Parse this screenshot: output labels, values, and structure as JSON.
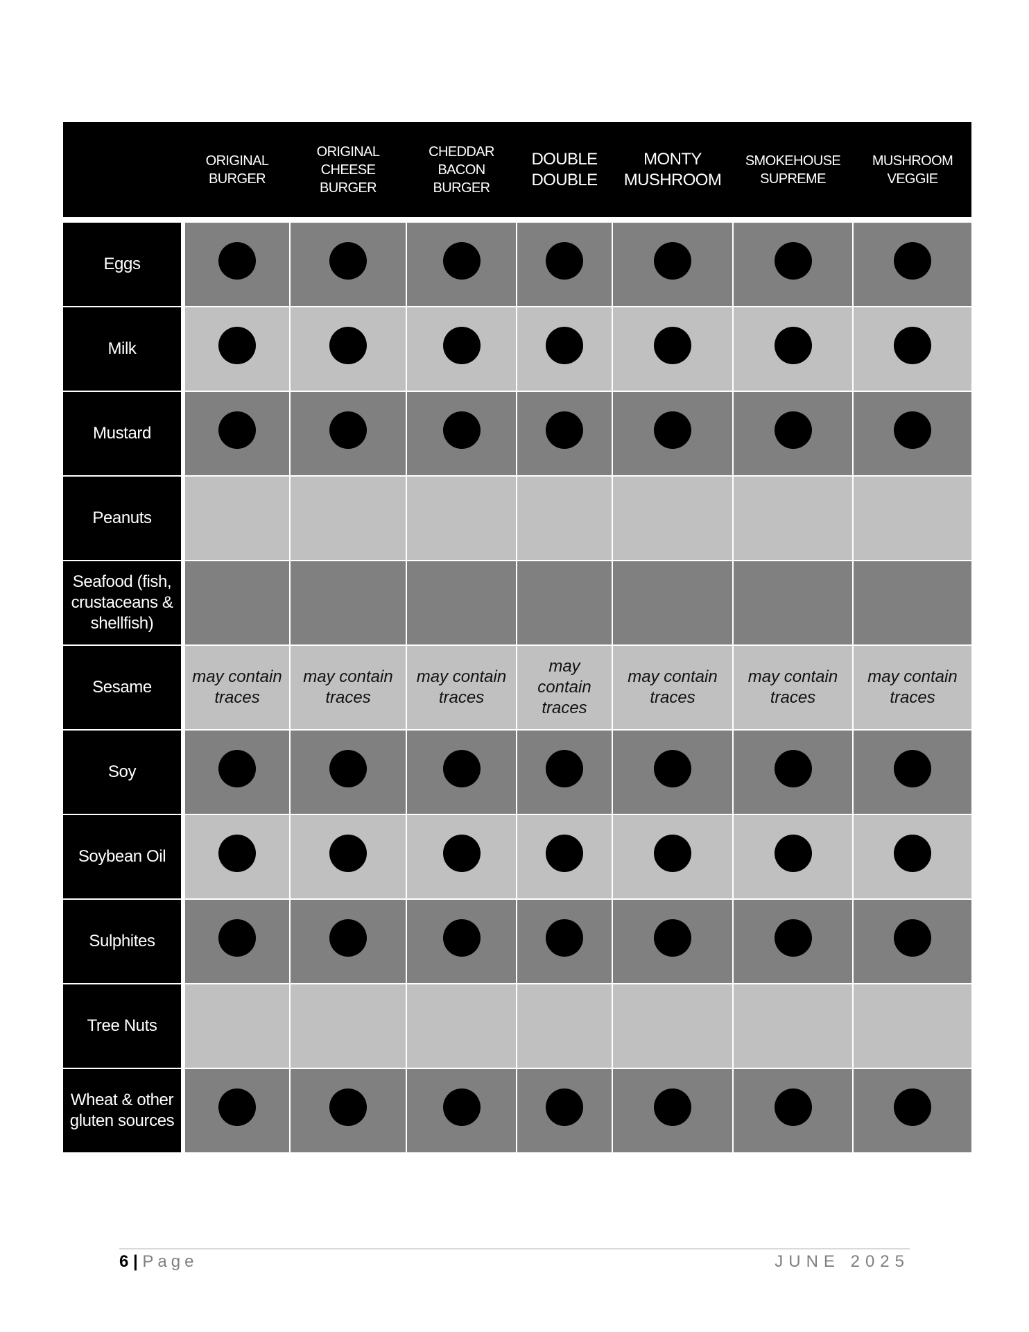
{
  "table": {
    "columns": [
      "ORIGINAL BURGER",
      "ORIGINAL CHEESE BURGER",
      "CHEDDAR BACON BURGER",
      "DOUBLE DOUBLE",
      "MONTY MUSHROOM",
      "SMOKEHOUSE SUPREME",
      "MUSHROOM VEGGIE"
    ],
    "legend": {
      "dot": "contains allergen (black dot)"
    },
    "colors": {
      "header": "#000000",
      "row_dark": "#808080",
      "row_light": "#c0c0c0"
    },
    "rows": [
      {
        "label": "Eggs",
        "values": [
          "dot",
          "dot",
          "dot",
          "dot",
          "dot",
          "dot",
          "dot"
        ]
      },
      {
        "label": "Milk",
        "values": [
          "dot",
          "dot",
          "dot",
          "dot",
          "dot",
          "dot",
          "dot"
        ]
      },
      {
        "label": "Mustard",
        "values": [
          "dot",
          "dot",
          "dot",
          "dot",
          "dot",
          "dot",
          "dot"
        ]
      },
      {
        "label": "Peanuts",
        "values": [
          "",
          "",
          "",
          "",
          "",
          "",
          ""
        ]
      },
      {
        "label": "Seafood (fish, crustaceans & shellfish)",
        "values": [
          "",
          "",
          "",
          "",
          "",
          "",
          ""
        ]
      },
      {
        "label": "Sesame",
        "values": [
          "may contain traces",
          "may contain traces",
          "may contain traces",
          "may contain traces",
          "may contain traces",
          "may contain traces",
          "may contain traces"
        ]
      },
      {
        "label": "Soy",
        "values": [
          "dot",
          "dot",
          "dot",
          "dot",
          "dot",
          "dot",
          "dot"
        ]
      },
      {
        "label": "Soybean Oil",
        "values": [
          "dot",
          "dot",
          "dot",
          "dot",
          "dot",
          "dot",
          "dot"
        ]
      },
      {
        "label": "Sulphites",
        "values": [
          "dot",
          "dot",
          "dot",
          "dot",
          "dot",
          "dot",
          "dot"
        ]
      },
      {
        "label": "Tree Nuts",
        "values": [
          "",
          "",
          "",
          "",
          "",
          "",
          ""
        ]
      },
      {
        "label": "Wheat & other gluten sources",
        "values": [
          "dot",
          "dot",
          "dot",
          "dot",
          "dot",
          "dot",
          "dot"
        ]
      }
    ]
  },
  "footer": {
    "page_number": "6",
    "separator": " | ",
    "page_label": "Page",
    "date": "JUNE 2025"
  }
}
